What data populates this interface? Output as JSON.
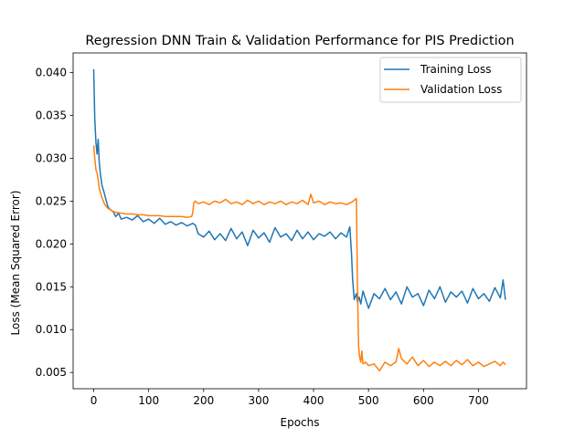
{
  "chart_data": {
    "type": "line",
    "title": "Regression DNN Train & Validation Performance for PIS Prediction",
    "xlabel": "Epochs",
    "ylabel": "Loss (Mean Squared Error)",
    "xlim": [
      -37.5,
      787.5
    ],
    "ylim": [
      0.0031,
      0.0423
    ],
    "xticks": [
      0,
      100,
      200,
      300,
      400,
      500,
      600,
      700
    ],
    "yticks": [
      0.005,
      0.01,
      0.015,
      0.02,
      0.025,
      0.03,
      0.035,
      0.04
    ],
    "xtick_labels": [
      "0",
      "100",
      "200",
      "300",
      "400",
      "500",
      "600",
      "700"
    ],
    "ytick_labels": [
      "0.005",
      "0.010",
      "0.015",
      "0.020",
      "0.025",
      "0.030",
      "0.035",
      "0.040"
    ],
    "grid": false,
    "legend_position": "upper right",
    "series": [
      {
        "name": "Training Loss",
        "color": "#1f77b4",
        "x": [
          0,
          2,
          4,
          6,
          8,
          10,
          12,
          15,
          18,
          22,
          26,
          30,
          35,
          40,
          45,
          50,
          60,
          70,
          80,
          90,
          100,
          110,
          120,
          130,
          140,
          150,
          160,
          170,
          180,
          185,
          190,
          200,
          210,
          220,
          230,
          240,
          250,
          260,
          270,
          280,
          290,
          300,
          310,
          320,
          330,
          340,
          350,
          360,
          370,
          380,
          390,
          400,
          410,
          420,
          430,
          440,
          450,
          460,
          466,
          469,
          471,
          474,
          478,
          480,
          483,
          486,
          490,
          500,
          510,
          520,
          530,
          540,
          550,
          560,
          570,
          580,
          590,
          600,
          610,
          620,
          630,
          640,
          650,
          660,
          670,
          680,
          690,
          700,
          710,
          720,
          730,
          740,
          745,
          749
        ],
        "y": [
          0.0404,
          0.0345,
          0.0318,
          0.0305,
          0.0322,
          0.0295,
          0.0282,
          0.0268,
          0.0262,
          0.0252,
          0.0243,
          0.024,
          0.0238,
          0.0232,
          0.0236,
          0.0229,
          0.0231,
          0.0228,
          0.0233,
          0.0226,
          0.0229,
          0.0224,
          0.023,
          0.0223,
          0.0226,
          0.0222,
          0.0225,
          0.0221,
          0.0224,
          0.0222,
          0.0212,
          0.0208,
          0.0215,
          0.0205,
          0.0212,
          0.0204,
          0.0218,
          0.0206,
          0.0214,
          0.0198,
          0.0216,
          0.0207,
          0.0213,
          0.0202,
          0.0219,
          0.0208,
          0.0212,
          0.0204,
          0.0216,
          0.0206,
          0.0214,
          0.0205,
          0.0212,
          0.0209,
          0.0214,
          0.0206,
          0.0213,
          0.0208,
          0.022,
          0.019,
          0.016,
          0.0135,
          0.0142,
          0.0132,
          0.0138,
          0.013,
          0.0145,
          0.0125,
          0.0142,
          0.0136,
          0.0148,
          0.0135,
          0.0144,
          0.013,
          0.015,
          0.0138,
          0.0142,
          0.0128,
          0.0146,
          0.0136,
          0.015,
          0.0132,
          0.0144,
          0.0138,
          0.0145,
          0.0131,
          0.0148,
          0.0136,
          0.0142,
          0.0133,
          0.0149,
          0.0137,
          0.0158,
          0.0135
        ]
      },
      {
        "name": "Validation Loss",
        "color": "#ff7f0e",
        "x": [
          0,
          2,
          4,
          6,
          8,
          10,
          13,
          16,
          20,
          25,
          30,
          35,
          40,
          50,
          60,
          70,
          80,
          90,
          100,
          110,
          120,
          130,
          140,
          150,
          160,
          170,
          178,
          180,
          182,
          185,
          190,
          200,
          210,
          220,
          230,
          240,
          250,
          260,
          270,
          280,
          290,
          300,
          310,
          320,
          330,
          340,
          350,
          360,
          370,
          380,
          390,
          395,
          400,
          410,
          420,
          430,
          440,
          450,
          460,
          470,
          478,
          480,
          482,
          484,
          486,
          488,
          490,
          495,
          500,
          510,
          520,
          530,
          540,
          550,
          555,
          560,
          570,
          580,
          590,
          600,
          610,
          620,
          630,
          640,
          650,
          660,
          670,
          680,
          690,
          700,
          710,
          720,
          730,
          740,
          745,
          749
        ],
        "y": [
          0.0315,
          0.03,
          0.0286,
          0.0283,
          0.0275,
          0.0265,
          0.0258,
          0.0252,
          0.0246,
          0.0242,
          0.024,
          0.0238,
          0.0237,
          0.0236,
          0.0235,
          0.0235,
          0.0234,
          0.0234,
          0.0233,
          0.0233,
          0.0233,
          0.0232,
          0.0232,
          0.0232,
          0.0232,
          0.0231,
          0.0232,
          0.0236,
          0.0248,
          0.025,
          0.0247,
          0.0249,
          0.0246,
          0.025,
          0.0248,
          0.0252,
          0.0247,
          0.0249,
          0.0246,
          0.0251,
          0.0247,
          0.025,
          0.0246,
          0.0249,
          0.0247,
          0.025,
          0.0246,
          0.0249,
          0.0247,
          0.0251,
          0.0246,
          0.0258,
          0.0248,
          0.025,
          0.0246,
          0.0249,
          0.0247,
          0.0248,
          0.0246,
          0.0249,
          0.0253,
          0.015,
          0.008,
          0.0068,
          0.0062,
          0.0075,
          0.006,
          0.0062,
          0.0058,
          0.006,
          0.0052,
          0.0062,
          0.0058,
          0.0062,
          0.0078,
          0.0066,
          0.006,
          0.0068,
          0.0058,
          0.0064,
          0.0057,
          0.0062,
          0.0058,
          0.0063,
          0.0058,
          0.0064,
          0.0059,
          0.0065,
          0.0058,
          0.0062,
          0.0057,
          0.006,
          0.0063,
          0.0058,
          0.0062,
          0.0059
        ]
      }
    ]
  }
}
